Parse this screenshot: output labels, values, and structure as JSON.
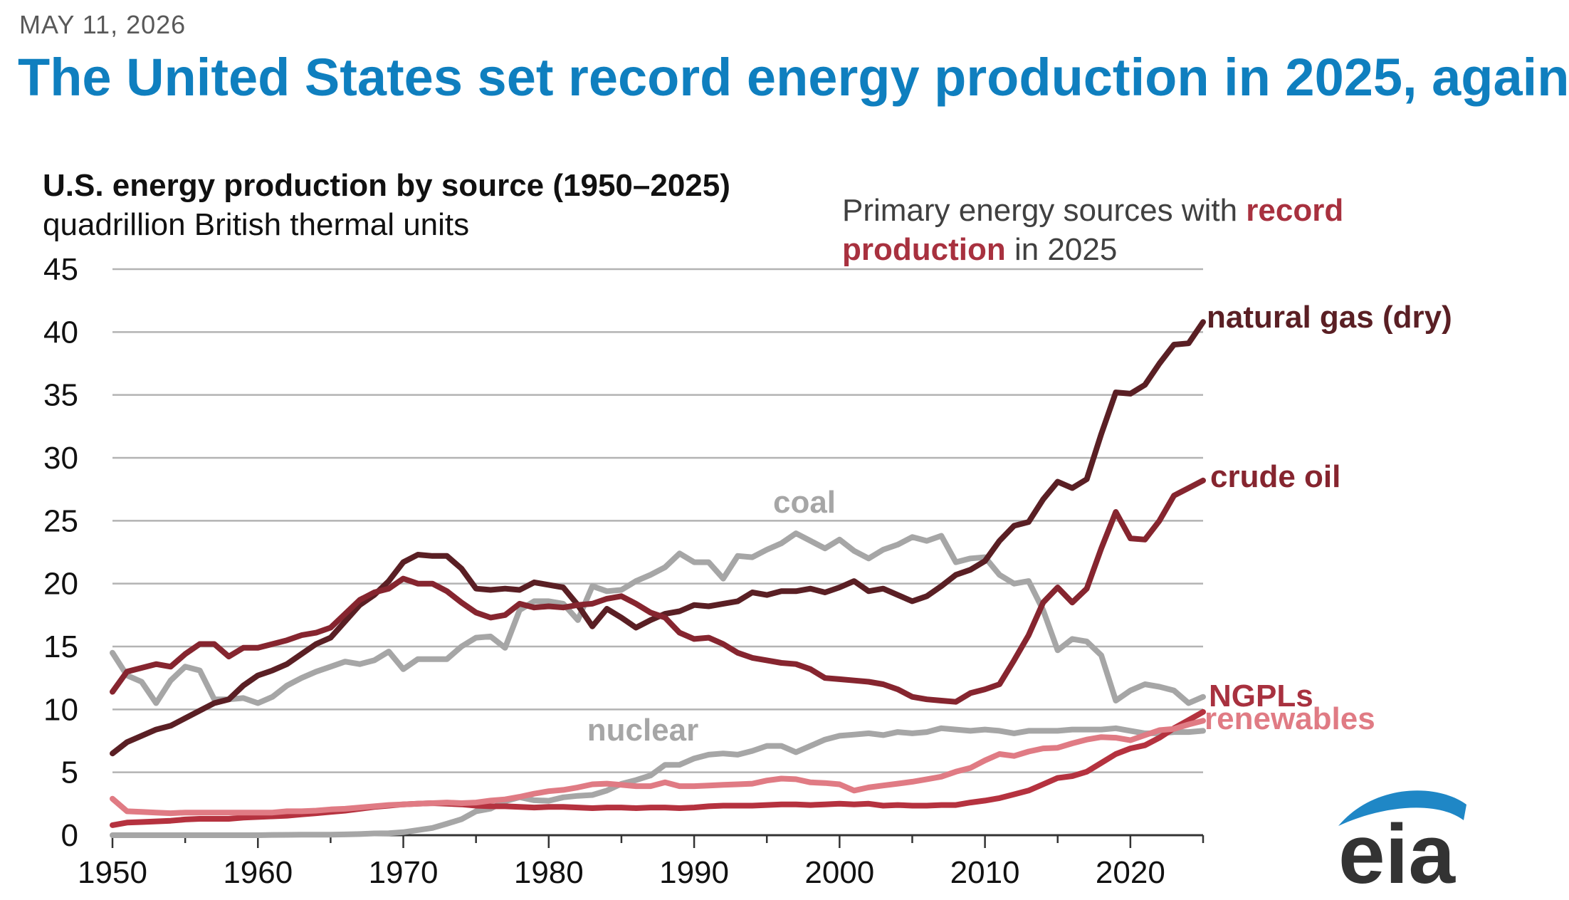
{
  "header": {
    "date": "MAY 11, 2026",
    "headline": "The United States set record energy production in 2025, again"
  },
  "note": {
    "prefix": "Primary energy sources with ",
    "highlight": "record production",
    "suffix": " in 2025"
  },
  "logo": {
    "text": "eia",
    "icon": "eia-swoosh-logo"
  },
  "chart_data": {
    "type": "line",
    "title": "U.S. energy production by source (1950–2025)",
    "subtitle": "quadrillion British thermal units",
    "xlim": [
      1950,
      2025
    ],
    "ylim": [
      0,
      45
    ],
    "yticks": [
      0,
      5,
      10,
      15,
      20,
      25,
      30,
      35,
      40,
      45
    ],
    "xticks": [
      1950,
      1960,
      1970,
      1980,
      1990,
      2000,
      2010,
      2020
    ],
    "grid": true,
    "legend": "labels at line ends",
    "series": [
      {
        "name": "coal",
        "color": "#a6a6a6",
        "labelColor": "#a6a6a6",
        "x": [
          1950,
          1951,
          1952,
          1953,
          1954,
          1955,
          1956,
          1957,
          1958,
          1959,
          1960,
          1961,
          1962,
          1963,
          1964,
          1965,
          1966,
          1967,
          1968,
          1969,
          1970,
          1971,
          1972,
          1973,
          1974,
          1975,
          1976,
          1977,
          1978,
          1979,
          1980,
          1981,
          1982,
          1983,
          1984,
          1985,
          1986,
          1987,
          1988,
          1989,
          1990,
          1991,
          1992,
          1993,
          1994,
          1995,
          1996,
          1997,
          1998,
          1999,
          2000,
          2001,
          2002,
          2003,
          2004,
          2005,
          2006,
          2007,
          2008,
          2009,
          2010,
          2011,
          2012,
          2013,
          2014,
          2015,
          2016,
          2017,
          2018,
          2019,
          2020,
          2021,
          2022,
          2023,
          2024,
          2025
        ],
        "values": [
          14.5,
          12.7,
          12.2,
          10.5,
          12.3,
          13.4,
          13.1,
          10.8,
          10.8,
          10.9,
          10.5,
          11.0,
          11.9,
          12.5,
          13.0,
          13.4,
          13.8,
          13.6,
          13.9,
          14.6,
          13.2,
          14.0,
          14.0,
          14.0,
          15.0,
          15.7,
          15.8,
          14.9,
          17.9,
          18.6,
          18.6,
          18.4,
          17.1,
          19.8,
          19.4,
          19.5,
          20.2,
          20.7,
          21.3,
          22.4,
          21.7,
          21.7,
          20.4,
          22.2,
          22.1,
          22.7,
          23.2,
          24.0,
          23.4,
          22.8,
          23.5,
          22.6,
          22.0,
          22.7,
          23.1,
          23.7,
          23.4,
          23.8,
          21.7,
          22.0,
          22.1,
          20.7,
          20.0,
          20.2,
          17.9,
          14.7,
          15.6,
          15.4,
          14.3,
          10.7,
          11.5,
          12.0,
          11.8,
          11.5,
          10.5,
          11.0
        ]
      },
      {
        "name": "natural gas (dry)",
        "color": "#5a1f24",
        "labelColor": "#5a1f24",
        "x": [
          1950,
          1951,
          1952,
          1953,
          1954,
          1955,
          1956,
          1957,
          1958,
          1959,
          1960,
          1961,
          1962,
          1963,
          1964,
          1965,
          1966,
          1967,
          1968,
          1969,
          1970,
          1971,
          1972,
          1973,
          1974,
          1975,
          1976,
          1977,
          1978,
          1979,
          1980,
          1981,
          1982,
          1983,
          1984,
          1985,
          1986,
          1987,
          1988,
          1989,
          1990,
          1991,
          1992,
          1993,
          1994,
          1995,
          1996,
          1997,
          1998,
          1999,
          2000,
          2001,
          2002,
          2003,
          2004,
          2005,
          2006,
          2007,
          2008,
          2009,
          2010,
          2011,
          2012,
          2013,
          2014,
          2015,
          2016,
          2017,
          2018,
          2019,
          2020,
          2021,
          2022,
          2023,
          2024,
          2025
        ],
        "values": [
          6.5,
          7.4,
          7.9,
          8.4,
          8.7,
          9.3,
          9.9,
          10.5,
          10.8,
          11.9,
          12.7,
          13.1,
          13.6,
          14.4,
          15.2,
          15.7,
          17.0,
          18.3,
          19.1,
          20.2,
          21.7,
          22.3,
          22.2,
          22.2,
          21.2,
          19.6,
          19.5,
          19.6,
          19.5,
          20.1,
          19.9,
          19.7,
          18.3,
          16.6,
          18.0,
          17.3,
          16.5,
          17.1,
          17.6,
          17.8,
          18.3,
          18.2,
          18.4,
          18.6,
          19.3,
          19.1,
          19.4,
          19.4,
          19.6,
          19.3,
          19.7,
          20.2,
          19.4,
          19.6,
          19.1,
          18.6,
          19.0,
          19.8,
          20.7,
          21.1,
          21.8,
          23.4,
          24.6,
          24.9,
          26.7,
          28.1,
          27.6,
          28.3,
          31.9,
          35.2,
          35.1,
          35.8,
          37.5,
          39.0,
          39.1,
          40.8
        ]
      },
      {
        "name": "crude oil",
        "color": "#86252f",
        "labelColor": "#86252f",
        "x": [
          1950,
          1951,
          1952,
          1953,
          1954,
          1955,
          1956,
          1957,
          1958,
          1959,
          1960,
          1961,
          1962,
          1963,
          1964,
          1965,
          1966,
          1967,
          1968,
          1969,
          1970,
          1971,
          1972,
          1973,
          1974,
          1975,
          1976,
          1977,
          1978,
          1979,
          1980,
          1981,
          1982,
          1983,
          1984,
          1985,
          1986,
          1987,
          1988,
          1989,
          1990,
          1991,
          1992,
          1993,
          1994,
          1995,
          1996,
          1997,
          1998,
          1999,
          2000,
          2001,
          2002,
          2003,
          2004,
          2005,
          2006,
          2007,
          2008,
          2009,
          2010,
          2011,
          2012,
          2013,
          2014,
          2015,
          2016,
          2017,
          2018,
          2019,
          2020,
          2021,
          2022,
          2023,
          2024,
          2025
        ],
        "values": [
          11.4,
          13.0,
          13.3,
          13.6,
          13.4,
          14.4,
          15.2,
          15.2,
          14.2,
          14.9,
          14.9,
          15.2,
          15.5,
          15.9,
          16.1,
          16.5,
          17.6,
          18.7,
          19.3,
          19.6,
          20.4,
          20.0,
          20.0,
          19.4,
          18.5,
          17.7,
          17.3,
          17.5,
          18.4,
          18.1,
          18.2,
          18.1,
          18.3,
          18.4,
          18.8,
          19.0,
          18.4,
          17.7,
          17.3,
          16.1,
          15.6,
          15.7,
          15.2,
          14.5,
          14.1,
          13.9,
          13.7,
          13.6,
          13.2,
          12.5,
          12.4,
          12.3,
          12.2,
          12.0,
          11.6,
          11.0,
          10.8,
          10.7,
          10.6,
          11.3,
          11.6,
          12.0,
          13.9,
          15.9,
          18.5,
          19.7,
          18.5,
          19.6,
          22.8,
          25.7,
          23.6,
          23.5,
          25.0,
          27.0,
          27.6,
          28.2
        ]
      },
      {
        "name": "nuclear",
        "color": "#a6a6a6",
        "labelColor": "#a6a6a6",
        "x": [
          1950,
          1951,
          1952,
          1953,
          1954,
          1955,
          1956,
          1957,
          1958,
          1959,
          1960,
          1961,
          1962,
          1963,
          1964,
          1965,
          1966,
          1967,
          1968,
          1969,
          1970,
          1971,
          1972,
          1973,
          1974,
          1975,
          1976,
          1977,
          1978,
          1979,
          1980,
          1981,
          1982,
          1983,
          1984,
          1985,
          1986,
          1987,
          1988,
          1989,
          1990,
          1991,
          1992,
          1993,
          1994,
          1995,
          1996,
          1997,
          1998,
          1999,
          2000,
          2001,
          2002,
          2003,
          2004,
          2005,
          2006,
          2007,
          2008,
          2009,
          2010,
          2011,
          2012,
          2013,
          2014,
          2015,
          2016,
          2017,
          2018,
          2019,
          2020,
          2021,
          2022,
          2023,
          2024,
          2025
        ],
        "values": [
          0,
          0,
          0,
          0,
          0,
          0,
          0,
          0,
          0,
          0,
          0,
          0.02,
          0.03,
          0.04,
          0.04,
          0.04,
          0.06,
          0.09,
          0.14,
          0.15,
          0.24,
          0.41,
          0.58,
          0.91,
          1.27,
          1.9,
          2.11,
          2.7,
          3.02,
          2.78,
          2.74,
          3.01,
          3.13,
          3.2,
          3.55,
          4.08,
          4.38,
          4.75,
          5.59,
          5.6,
          6.1,
          6.4,
          6.5,
          6.4,
          6.7,
          7.1,
          7.1,
          6.6,
          7.1,
          7.6,
          7.9,
          8.0,
          8.1,
          7.96,
          8.2,
          8.1,
          8.2,
          8.5,
          8.4,
          8.3,
          8.4,
          8.3,
          8.1,
          8.3,
          8.3,
          8.3,
          8.4,
          8.4,
          8.4,
          8.5,
          8.3,
          8.1,
          8.1,
          8.2,
          8.2,
          8.3
        ]
      },
      {
        "name": "NGPLs",
        "color": "#b5323f",
        "labelColor": "#a8313f",
        "x": [
          1950,
          1951,
          1952,
          1953,
          1954,
          1955,
          1956,
          1957,
          1958,
          1959,
          1960,
          1961,
          1962,
          1963,
          1964,
          1965,
          1966,
          1967,
          1968,
          1969,
          1970,
          1971,
          1972,
          1973,
          1974,
          1975,
          1976,
          1977,
          1978,
          1979,
          1980,
          1981,
          1982,
          1983,
          1984,
          1985,
          1986,
          1987,
          1988,
          1989,
          1990,
          1991,
          1992,
          1993,
          1994,
          1995,
          1996,
          1997,
          1998,
          1999,
          2000,
          2001,
          2002,
          2003,
          2004,
          2005,
          2006,
          2007,
          2008,
          2009,
          2010,
          2011,
          2012,
          2013,
          2014,
          2015,
          2016,
          2017,
          2018,
          2019,
          2020,
          2021,
          2022,
          2023,
          2024,
          2025
        ],
        "values": [
          0.8,
          1.0,
          1.05,
          1.1,
          1.15,
          1.25,
          1.3,
          1.3,
          1.3,
          1.4,
          1.45,
          1.5,
          1.55,
          1.65,
          1.75,
          1.85,
          1.95,
          2.1,
          2.25,
          2.35,
          2.45,
          2.5,
          2.55,
          2.5,
          2.45,
          2.35,
          2.3,
          2.3,
          2.25,
          2.2,
          2.25,
          2.25,
          2.2,
          2.15,
          2.2,
          2.2,
          2.15,
          2.2,
          2.2,
          2.15,
          2.2,
          2.3,
          2.35,
          2.35,
          2.35,
          2.4,
          2.45,
          2.45,
          2.4,
          2.45,
          2.5,
          2.45,
          2.5,
          2.35,
          2.4,
          2.35,
          2.35,
          2.4,
          2.4,
          2.6,
          2.75,
          2.95,
          3.25,
          3.55,
          4.05,
          4.55,
          4.7,
          5.05,
          5.75,
          6.45,
          6.9,
          7.15,
          7.75,
          8.5,
          9.15,
          9.8
        ]
      },
      {
        "name": "renewables",
        "color": "#e07b84",
        "labelColor": "#e07b84",
        "x": [
          1950,
          1951,
          1952,
          1953,
          1954,
          1955,
          1956,
          1957,
          1958,
          1959,
          1960,
          1961,
          1962,
          1963,
          1964,
          1965,
          1966,
          1967,
          1968,
          1969,
          1970,
          1971,
          1972,
          1973,
          1974,
          1975,
          1976,
          1977,
          1978,
          1979,
          1980,
          1981,
          1982,
          1983,
          1984,
          1985,
          1986,
          1987,
          1988,
          1989,
          1990,
          1991,
          1992,
          1993,
          1994,
          1995,
          1996,
          1997,
          1998,
          1999,
          2000,
          2001,
          2002,
          2003,
          2004,
          2005,
          2006,
          2007,
          2008,
          2009,
          2010,
          2011,
          2012,
          2013,
          2014,
          2015,
          2016,
          2017,
          2018,
          2019,
          2020,
          2021,
          2022,
          2023,
          2024,
          2025
        ],
        "values": [
          2.9,
          1.9,
          1.85,
          1.8,
          1.75,
          1.8,
          1.8,
          1.8,
          1.8,
          1.8,
          1.8,
          1.8,
          1.9,
          1.9,
          1.95,
          2.05,
          2.1,
          2.2,
          2.3,
          2.4,
          2.45,
          2.5,
          2.55,
          2.6,
          2.55,
          2.6,
          2.75,
          2.85,
          3.05,
          3.3,
          3.5,
          3.6,
          3.8,
          4.05,
          4.1,
          4.0,
          3.9,
          3.9,
          4.2,
          3.9,
          3.9,
          3.95,
          4.0,
          4.05,
          4.1,
          4.35,
          4.5,
          4.45,
          4.2,
          4.15,
          4.05,
          3.55,
          3.8,
          3.95,
          4.1,
          4.25,
          4.45,
          4.65,
          5.05,
          5.35,
          5.95,
          6.45,
          6.3,
          6.65,
          6.9,
          6.95,
          7.3,
          7.6,
          7.8,
          7.75,
          7.55,
          7.95,
          8.35,
          8.45,
          8.8,
          9.1
        ]
      }
    ]
  }
}
